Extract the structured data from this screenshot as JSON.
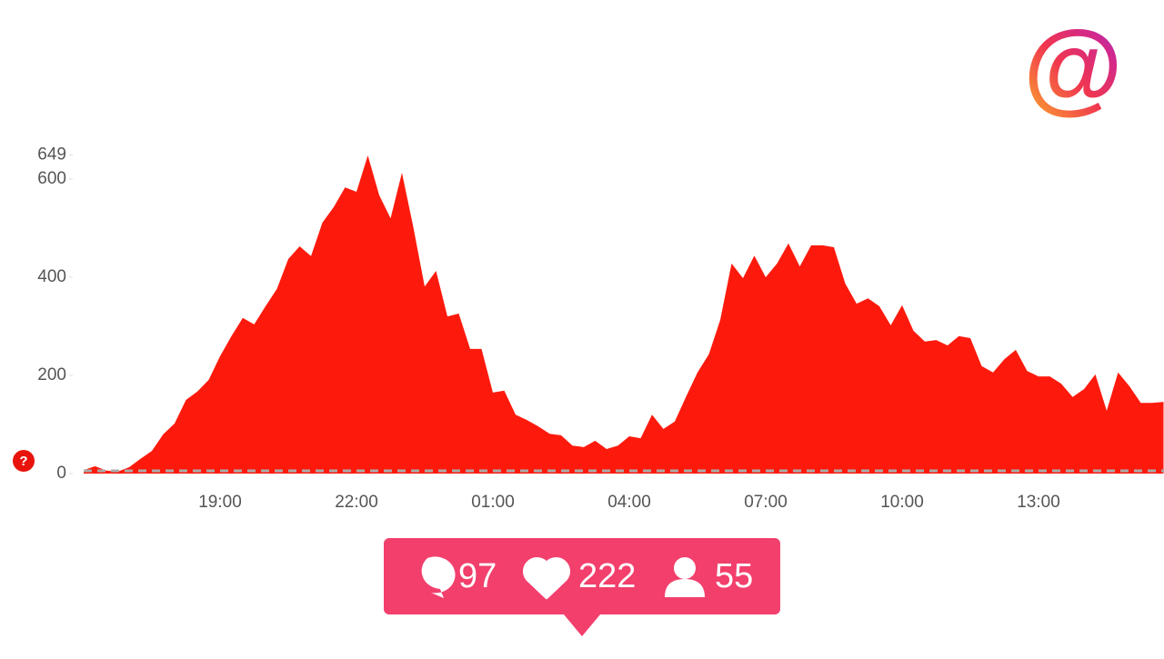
{
  "logo": "@",
  "help_icon": "?",
  "chart_data": {
    "type": "area",
    "color": "#fd1a0d",
    "categories": [
      null,
      null,
      null,
      null,
      null,
      null,
      null,
      null,
      null,
      null,
      null,
      null,
      "19:00",
      null,
      null,
      null,
      null,
      null,
      null,
      null,
      null,
      null,
      null,
      null,
      "22:00",
      null,
      null,
      null,
      null,
      null,
      null,
      null,
      null,
      null,
      null,
      null,
      "01:00",
      null,
      null,
      null,
      null,
      null,
      null,
      null,
      null,
      null,
      null,
      null,
      "04:00",
      null,
      null,
      null,
      null,
      null,
      null,
      null,
      null,
      null,
      null,
      null,
      "07:00",
      null,
      null,
      null,
      null,
      null,
      null,
      null,
      null,
      null,
      null,
      null,
      "10:00",
      null,
      null,
      null,
      null,
      null,
      null,
      null,
      null,
      null,
      null,
      null,
      "13:00",
      null,
      null,
      null,
      null,
      null,
      null,
      null,
      null,
      null,
      null,
      null
    ],
    "values": [
      7,
      15,
      6,
      4,
      13,
      30,
      46,
      80,
      102,
      150,
      167,
      191,
      239,
      280,
      317,
      304,
      341,
      376,
      437,
      463,
      443,
      511,
      543,
      583,
      574,
      648,
      567,
      520,
      613,
      502,
      381,
      413,
      320,
      326,
      254,
      254,
      165,
      169,
      120,
      109,
      96,
      81,
      78,
      57,
      54,
      67,
      50,
      57,
      76,
      72,
      120,
      91,
      106,
      157,
      206,
      243,
      313,
      428,
      398,
      444,
      400,
      428,
      469,
      422,
      465,
      465,
      461,
      387,
      346,
      357,
      341,
      302,
      343,
      291,
      269,
      272,
      261,
      280,
      276,
      219,
      206,
      233,
      252,
      209,
      198,
      198,
      183,
      156,
      172,
      202,
      128,
      206,
      178,
      144,
      144,
      146
    ],
    "ylim": [
      0,
      649
    ],
    "yticks": [
      0,
      200,
      400,
      600,
      649
    ]
  },
  "notification": {
    "comments": "97",
    "likes": "222",
    "followers": "55"
  }
}
